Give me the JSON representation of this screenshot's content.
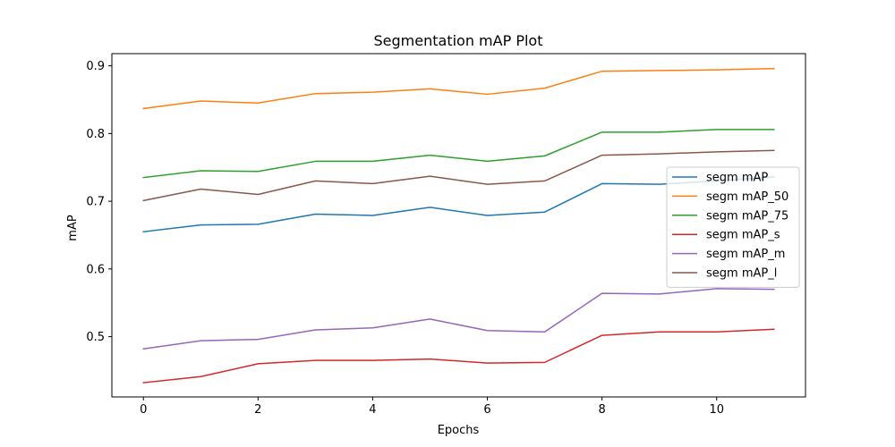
{
  "chart_data": {
    "type": "line",
    "title": "Segmentation mAP Plot",
    "xlabel": "Epochs",
    "ylabel": "mAP",
    "x": [
      0,
      1,
      2,
      3,
      4,
      5,
      6,
      7,
      8,
      9,
      10,
      11
    ],
    "xticks": [
      0,
      2,
      4,
      6,
      8,
      10
    ],
    "yticks": [
      0.5,
      0.6,
      0.7,
      0.8,
      0.9
    ],
    "xlim": [
      -0.55,
      11.55
    ],
    "ylim": [
      0.411,
      0.918
    ],
    "grid": false,
    "legend_position": "center-right",
    "series": [
      {
        "name": "segm mAP",
        "color": "#1f77b4",
        "values": [
          0.655,
          0.665,
          0.666,
          0.681,
          0.679,
          0.691,
          0.679,
          0.684,
          0.726,
          0.725,
          0.73,
          0.736
        ]
      },
      {
        "name": "segm mAP_50",
        "color": "#ff7f0e",
        "values": [
          0.837,
          0.848,
          0.845,
          0.859,
          0.861,
          0.866,
          0.858,
          0.867,
          0.892,
          0.893,
          0.894,
          0.896
        ]
      },
      {
        "name": "segm mAP_75",
        "color": "#2ca02c",
        "values": [
          0.735,
          0.745,
          0.744,
          0.759,
          0.759,
          0.768,
          0.759,
          0.767,
          0.802,
          0.802,
          0.806,
          0.806
        ]
      },
      {
        "name": "segm mAP_s",
        "color": "#d62728",
        "values": [
          0.432,
          0.441,
          0.46,
          0.465,
          0.465,
          0.467,
          0.461,
          0.462,
          0.502,
          0.507,
          0.507,
          0.511
        ]
      },
      {
        "name": "segm mAP_m",
        "color": "#9467bd",
        "values": [
          0.482,
          0.494,
          0.496,
          0.51,
          0.513,
          0.526,
          0.509,
          0.507,
          0.564,
          0.563,
          0.571,
          0.57
        ]
      },
      {
        "name": "segm mAP_l",
        "color": "#8c564b",
        "values": [
          0.701,
          0.718,
          0.71,
          0.73,
          0.726,
          0.737,
          0.725,
          0.73,
          0.768,
          0.77,
          0.773,
          0.775
        ]
      }
    ]
  }
}
